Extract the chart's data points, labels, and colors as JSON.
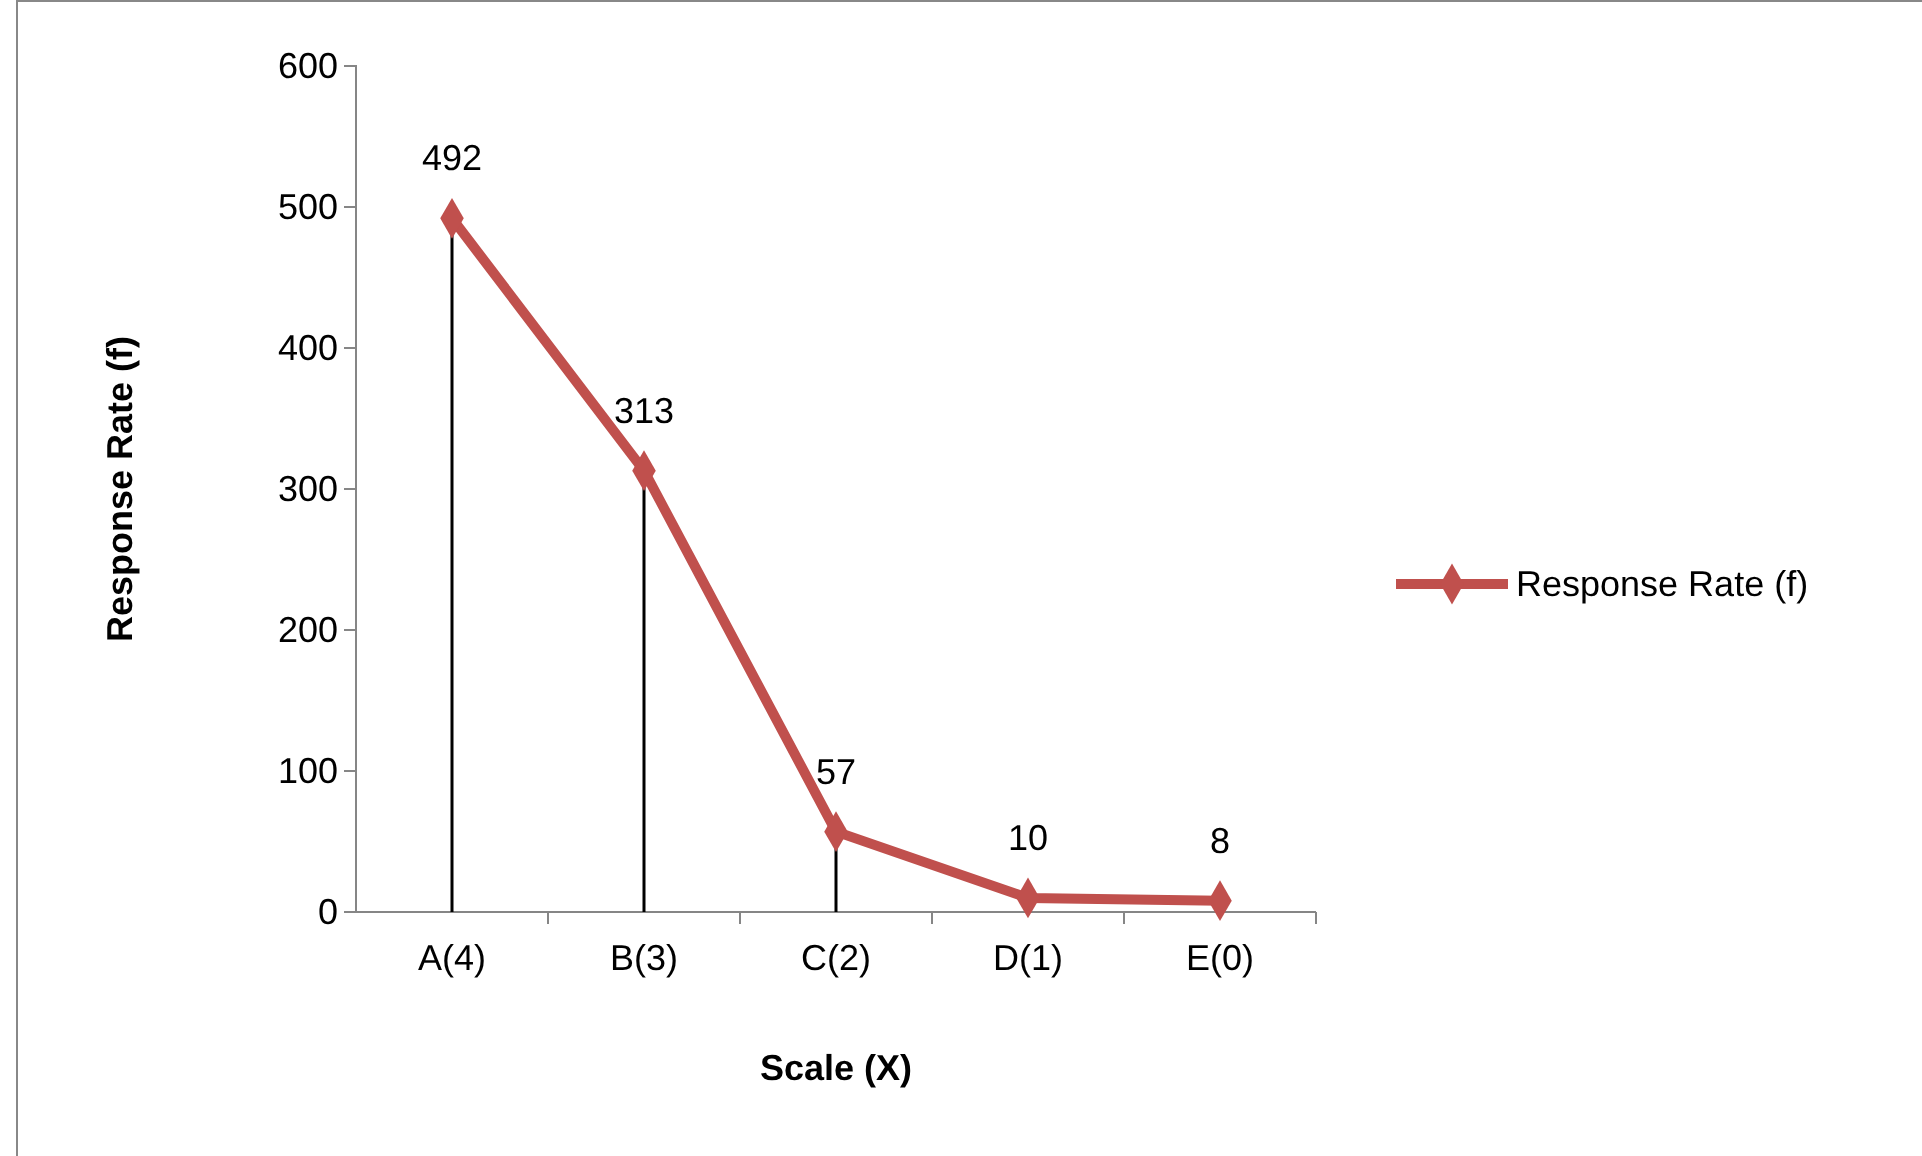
{
  "chart_data": {
    "type": "line",
    "xlabel": "Scale (X)",
    "ylabel": "Response Rate (f)",
    "categories": [
      "A(4)",
      "B(3)",
      "C(2)",
      "D(1)",
      "E(0)"
    ],
    "series": [
      {
        "name": "Response Rate (f)",
        "color": "#c0504d",
        "values": [
          492,
          313,
          57,
          10,
          8
        ]
      }
    ],
    "ylim": [
      0,
      600
    ],
    "yticks": [
      0,
      100,
      200,
      300,
      400,
      500,
      600
    ],
    "data_labels": true,
    "marker": "diamond",
    "legend": "right"
  }
}
